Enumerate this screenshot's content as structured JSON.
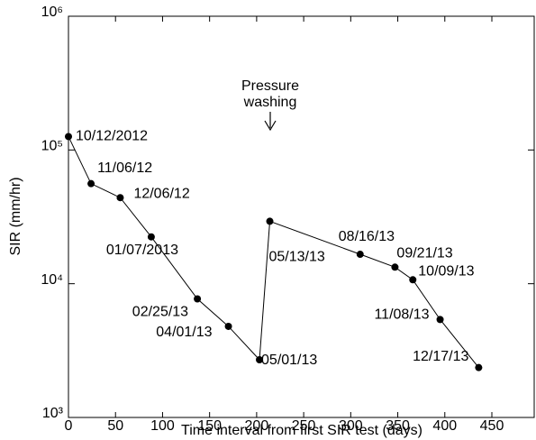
{
  "chart_data": {
    "type": "line",
    "log_y": true,
    "x_label": "Time interval from first SIR test (days)",
    "y_label": "SIR (mm/hr)",
    "annotation": [
      "Pressure",
      "washing"
    ],
    "x": [
      0,
      24,
      55,
      88,
      137,
      170,
      203,
      214,
      310,
      347,
      366,
      395,
      436
    ],
    "series": [
      {
        "color": "#000000",
        "values": [
          126000,
          56000,
          44000,
          22400,
          7700,
          4800,
          2700,
          29300,
          16600,
          13300,
          10700,
          5400,
          2360
        ],
        "point_labels": [
          "10/12/2012",
          "11/06/12",
          "12/06/12",
          "01/07/2013",
          "02/25/13",
          "04/01/13",
          "05/01/13",
          "05/13/13",
          "08/16/13",
          "09/21/13",
          "10/09/13",
          "11/08/13",
          "12/17/13"
        ]
      }
    ],
    "xlim": [
      0,
      495
    ],
    "xticks": [
      0,
      50,
      100,
      150,
      200,
      250,
      300,
      350,
      400,
      450
    ],
    "ylim": [
      1000,
      1000000
    ],
    "yticks": [
      {
        "value": 1000,
        "label": "10³"
      },
      {
        "value": 10000,
        "label": "10⁴"
      },
      {
        "value": 100000,
        "label": "10⁵"
      },
      {
        "value": 1000000,
        "label": "10⁶"
      }
    ],
    "grid": false
  }
}
